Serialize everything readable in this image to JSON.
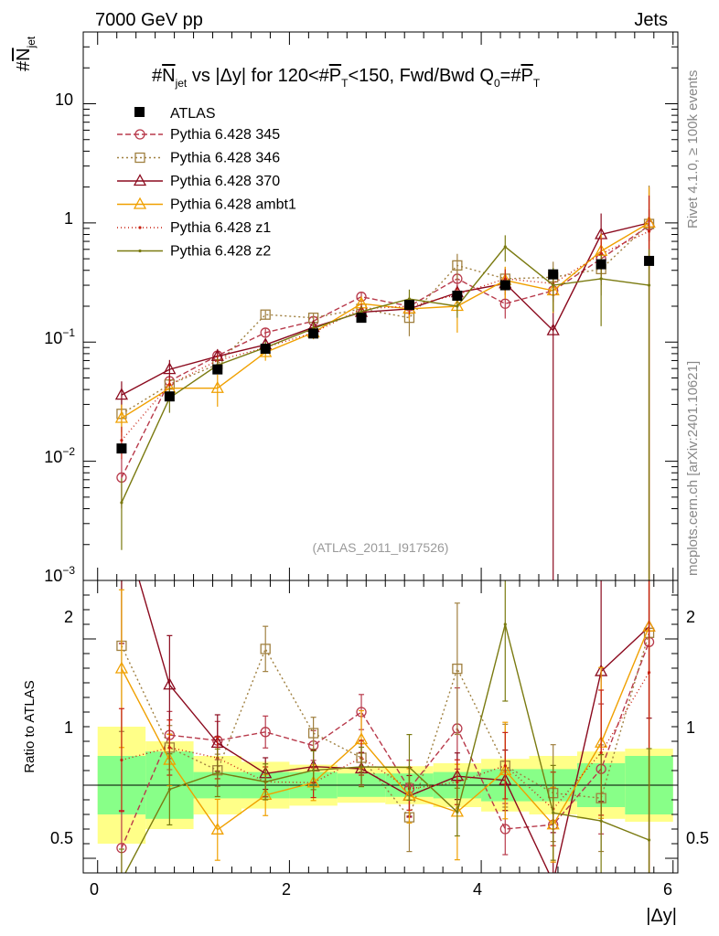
{
  "header": {
    "left": "7000 GeV pp",
    "right": "Jets"
  },
  "side": {
    "rivet": "Rivet 4.1.0, ≥ 100k events",
    "mcplots": "mcplots.cern.ch [arXiv:2401.10621]"
  },
  "chart_data": {
    "type": "line",
    "title": "#N_jet vs |Δy| for 120<#P_T<150, Fwd/Bwd Q0=#P_T",
    "title_parts": {
      "a": "#",
      "b": "N",
      "c": "jet",
      "d": " vs |Δy| for 120<#",
      "e": "P",
      "f": "T",
      "g": "<150, Fwd/Bwd Q",
      "h": "0",
      "i": "=#",
      "j": "P",
      "k": "T"
    },
    "ylabel_parts": {
      "a": "#",
      "b": "N",
      "c": "jet"
    },
    "xlabel": "|Δy|",
    "ratio_ylabel": "Ratio to ATLAS",
    "watermark": "(ATLAS_2011_I917526)",
    "xlim": [
      -0.15,
      6.05
    ],
    "ylim": [
      0.001,
      40
    ],
    "yscale": "log",
    "ratio_ylim": [
      0.4,
      2.4
    ],
    "x_ticks": [
      "0",
      "2",
      "4",
      "6"
    ],
    "y_ticks": {
      "t10": "10",
      "t1": "1",
      "tm1_base": "10",
      "tm1_exp": "−1",
      "tm2_base": "10",
      "tm2_exp": "−2",
      "tm3_base": "10",
      "tm3_exp": "−3"
    },
    "ratio_ticks": {
      "t05": "0.5",
      "t1": "1",
      "t2": "2"
    },
    "x": [
      0.25,
      0.75,
      1.25,
      1.75,
      2.25,
      2.75,
      3.25,
      3.75,
      4.25,
      4.75,
      5.25,
      5.75
    ],
    "data": {
      "name": "ATLAS",
      "values": [
        0.0128,
        0.035,
        0.059,
        0.088,
        0.118,
        0.16,
        0.205,
        0.245,
        0.3,
        0.37,
        0.45,
        0.48
      ],
      "band_inner": [
        0.2,
        0.23,
        0.09,
        0.09,
        0.09,
        0.08,
        0.08,
        0.09,
        0.11,
        0.11,
        0.15,
        0.2
      ],
      "band_outer": [
        0.4,
        0.3,
        0.2,
        0.16,
        0.14,
        0.12,
        0.13,
        0.15,
        0.18,
        0.2,
        0.23,
        0.25
      ]
    },
    "series": [
      {
        "name": "Pythia 6.428 345",
        "color": "#b83a4b",
        "dash": "6,3",
        "marker": "circle",
        "values": [
          0.0073,
          0.047,
          0.077,
          0.12,
          0.15,
          0.24,
          0.2,
          0.34,
          0.21,
          0.27,
          0.5,
          0.95
        ],
        "err": [
          0.45,
          0.12,
          0.1,
          0.08,
          0.08,
          0.08,
          0.2,
          0.2,
          0.25,
          0.35,
          0.4,
          1.1
        ]
      },
      {
        "name": "Pythia 6.428 346",
        "color": "#a08040",
        "dash": "2,3",
        "marker": "square",
        "values": [
          0.025,
          0.044,
          0.065,
          0.17,
          0.16,
          0.19,
          0.16,
          0.44,
          0.34,
          0.35,
          0.41,
          0.98
        ],
        "err": [
          0.3,
          0.12,
          0.1,
          0.08,
          0.08,
          0.08,
          0.3,
          0.25,
          0.25,
          0.35,
          0.4,
          1.1
        ]
      },
      {
        "name": "Pythia 6.428 370",
        "color": "#8b0a1e",
        "dash": "",
        "marker": "triangle",
        "values": [
          0.036,
          0.059,
          0.076,
          0.095,
          0.133,
          0.178,
          0.19,
          0.26,
          0.31,
          0.125,
          0.8,
          1.0
        ],
        "err": [
          0.3,
          0.2,
          0.15,
          0.1,
          0.1,
          0.1,
          0.15,
          0.15,
          0.2,
          1.0,
          0.5,
          0.3
        ]
      },
      {
        "name": "Pythia 6.428 ambt1",
        "color": "#f0a000",
        "dash": "",
        "marker": "triangle",
        "values": [
          0.023,
          0.041,
          0.041,
          0.082,
          0.12,
          0.21,
          0.19,
          0.2,
          0.33,
          0.27,
          0.58,
          1.0
        ],
        "err": [
          0.3,
          0.15,
          0.3,
          0.15,
          0.12,
          0.15,
          0.2,
          0.4,
          0.3,
          0.35,
          0.4,
          1.0
        ]
      },
      {
        "name": "Pythia 6.428 z1",
        "color": "#c82010",
        "dash": "1,3",
        "marker": "dot",
        "values": [
          0.015,
          0.044,
          0.07,
          0.09,
          0.12,
          0.19,
          0.2,
          0.25,
          0.34,
          0.31,
          0.55,
          0.85
        ],
        "err": [
          0.3,
          0.15,
          0.12,
          0.1,
          0.1,
          0.1,
          0.15,
          0.15,
          0.2,
          0.3,
          0.35,
          1.0
        ]
      },
      {
        "name": "Pythia 6.428 z2",
        "color": "#7a7a10",
        "dash": "",
        "marker": "dot",
        "values": [
          0.0045,
          0.034,
          0.064,
          0.09,
          0.13,
          0.18,
          0.23,
          0.2,
          0.63,
          0.3,
          0.34,
          0.3
        ],
        "err": [
          0.6,
          0.25,
          0.15,
          0.12,
          0.12,
          0.12,
          0.2,
          0.2,
          0.25,
          0.4,
          0.6,
          1.0
        ]
      }
    ]
  }
}
